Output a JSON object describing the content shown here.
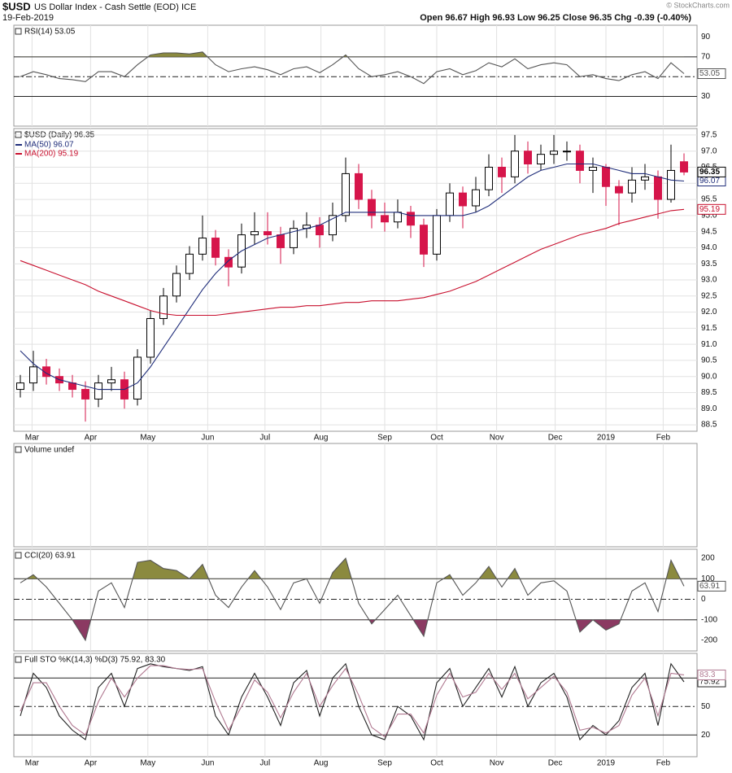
{
  "header": {
    "symbol": "$USD",
    "name": "US Dollar Index - Cash Settle (EOD) ICE",
    "date": "19-Feb-2019",
    "quote": "Open 96.67 High 96.93 Low 96.25 Close 96.35 Chg -0.39 (-0.40%)",
    "credit": "© StockCharts.com"
  },
  "chart_data": [
    {
      "type": "line",
      "title": "RSI(14) 53.05",
      "x": [
        0,
        1,
        2,
        3,
        4,
        5,
        6,
        7,
        8,
        9,
        10,
        11,
        12,
        13,
        14,
        15,
        16,
        17,
        18,
        19,
        20,
        21,
        22,
        23,
        24,
        25,
        26,
        27,
        28,
        29,
        30,
        31,
        32,
        33,
        34,
        35,
        36,
        37,
        38,
        39,
        40,
        41,
        42,
        43,
        44,
        45,
        46,
        47,
        48,
        49,
        50,
        51
      ],
      "xlim": [
        -0.5,
        52
      ],
      "ylim": [
        0,
        102
      ],
      "yticks": [
        90,
        70,
        30
      ],
      "overbought": 70,
      "oversold": 30,
      "centerline": 50,
      "fill_colors": {
        "above": "#8b8a3f",
        "below": "#8b3a62"
      },
      "series": [
        {
          "color": "#555555",
          "values": [
            50,
            55,
            52,
            48,
            47,
            45,
            55,
            55,
            50,
            62,
            72,
            74,
            74,
            73,
            75,
            62,
            55,
            58,
            60,
            57,
            52,
            58,
            60,
            54,
            62,
            72,
            58,
            50,
            52,
            55,
            50,
            43,
            55,
            58,
            52,
            56,
            64,
            60,
            68,
            58,
            62,
            64,
            62,
            50,
            52,
            48,
            46,
            52,
            55,
            48,
            64,
            53.05
          ]
        }
      ]
    },
    {
      "type": "candlestick",
      "title": "$USD (Daily) 96.35",
      "x": [
        0,
        1,
        2,
        3,
        4,
        5,
        6,
        7,
        8,
        9,
        10,
        11,
        12,
        13,
        14,
        15,
        16,
        17,
        18,
        19,
        20,
        21,
        22,
        23,
        24,
        25,
        26,
        27,
        28,
        29,
        30,
        31,
        32,
        33,
        34,
        35,
        36,
        37,
        38,
        39,
        40,
        41,
        42,
        43,
        44,
        45,
        46,
        47,
        48,
        49,
        50,
        51
      ],
      "xlim": [
        -0.5,
        52
      ],
      "xticks": [
        {
          "value": 0.9,
          "label": "Mar"
        },
        {
          "value": 5.4,
          "label": "Apr"
        },
        {
          "value": 9.8,
          "label": "May"
        },
        {
          "value": 14.4,
          "label": "Jun"
        },
        {
          "value": 18.8,
          "label": "Jul"
        },
        {
          "value": 23.1,
          "label": "Aug"
        },
        {
          "value": 28,
          "label": "Sep"
        },
        {
          "value": 32,
          "label": "Oct"
        },
        {
          "value": 36.6,
          "label": "Nov"
        },
        {
          "value": 41.1,
          "label": "Dec"
        },
        {
          "value": 45,
          "label": "2019"
        },
        {
          "value": 49.4,
          "label": "Feb"
        }
      ],
      "ylim": [
        88.3,
        97.7
      ],
      "yticks": [
        88.5,
        {
          "value": 89,
          "label": "89.0"
        },
        89.5,
        {
          "value": 90,
          "label": "90.0"
        },
        90.5,
        {
          "value": 91,
          "label": "91.0"
        },
        91.5,
        {
          "value": 92,
          "label": "92.0"
        },
        92.5,
        {
          "value": 93,
          "label": "93.0"
        },
        93.5,
        {
          "value": 94,
          "label": "94.0"
        },
        94.5,
        {
          "value": 95,
          "label": "95.0"
        },
        95.5,
        {
          "value": 96,
          "label": "96.0"
        },
        96.5,
        {
          "value": 97,
          "label": "97.0"
        },
        97.5
      ],
      "grid": true,
      "candles": {
        "up_color": "#000000",
        "down_color": "#d6154a",
        "open": [
          89.6,
          89.8,
          90.3,
          90.0,
          89.8,
          89.6,
          89.3,
          89.8,
          89.9,
          89.3,
          90.6,
          91.8,
          92.5,
          93.2,
          93.8,
          94.3,
          93.7,
          93.4,
          94.4,
          94.5,
          94.4,
          94.0,
          94.6,
          94.7,
          94.4,
          95.0,
          96.3,
          95.5,
          95.0,
          94.8,
          95.1,
          94.7,
          93.8,
          95.0,
          95.7,
          95.3,
          95.8,
          96.5,
          96.2,
          97.0,
          96.6,
          96.9,
          97.0,
          97.0,
          96.4,
          96.5,
          95.9,
          95.7,
          96.1,
          96.2,
          95.5,
          96.67
        ],
        "high": [
          90.05,
          90.8,
          90.55,
          90.25,
          90.05,
          89.85,
          90.05,
          90.3,
          90.15,
          90.85,
          92.05,
          92.75,
          93.45,
          94.05,
          95.0,
          94.55,
          93.95,
          94.75,
          95.1,
          95.1,
          94.65,
          94.85,
          95.1,
          94.95,
          95.4,
          96.8,
          96.6,
          95.8,
          95.4,
          95.5,
          95.3,
          94.9,
          95.2,
          96.0,
          95.9,
          96.2,
          96.9,
          96.8,
          97.5,
          97.3,
          97.2,
          97.5,
          97.3,
          97.2,
          96.8,
          96.6,
          96.1,
          96.5,
          96.6,
          96.4,
          97.2,
          96.93
        ],
        "low": [
          89.35,
          89.55,
          89.75,
          89.55,
          89.35,
          88.6,
          89.05,
          89.55,
          89.0,
          89.1,
          90.4,
          91.6,
          92.3,
          93.0,
          93.6,
          93.45,
          92.8,
          93.2,
          94.1,
          94.1,
          93.5,
          93.8,
          94.3,
          94.0,
          94.2,
          94.8,
          95.2,
          94.6,
          94.5,
          94.6,
          94.3,
          93.4,
          93.6,
          94.8,
          94.6,
          95.1,
          95.6,
          95.7,
          96.0,
          96.3,
          96.4,
          96.6,
          96.7,
          96.0,
          95.7,
          95.3,
          94.7,
          95.4,
          95.8,
          94.9,
          95.4,
          96.25
        ],
        "close": [
          89.8,
          90.3,
          90.0,
          89.8,
          89.6,
          89.3,
          89.8,
          89.9,
          89.3,
          90.6,
          91.8,
          92.5,
          93.2,
          93.8,
          94.3,
          93.7,
          93.4,
          94.4,
          94.5,
          94.4,
          94.0,
          94.6,
          94.7,
          94.4,
          95.0,
          96.3,
          95.5,
          95.0,
          94.8,
          95.1,
          94.7,
          93.8,
          95.0,
          95.7,
          95.3,
          95.8,
          96.5,
          96.2,
          97.0,
          96.6,
          96.9,
          97.0,
          97.0,
          96.4,
          96.5,
          95.9,
          95.7,
          96.1,
          96.2,
          95.5,
          96.4,
          96.35
        ]
      },
      "series": [
        {
          "name": "MA(50) 96.07",
          "color": "#1f2d7a",
          "values": [
            90.8,
            90.4,
            90.1,
            89.9,
            89.8,
            89.7,
            89.6,
            89.6,
            89.6,
            89.8,
            90.3,
            90.9,
            91.5,
            92.1,
            92.7,
            93.2,
            93.6,
            93.9,
            94.1,
            94.3,
            94.4,
            94.5,
            94.6,
            94.7,
            94.9,
            95.1,
            95.1,
            95.1,
            95.1,
            95.1,
            95.0,
            95.0,
            95.0,
            95.0,
            95.0,
            95.1,
            95.3,
            95.6,
            95.9,
            96.2,
            96.4,
            96.5,
            96.6,
            96.6,
            96.6,
            96.5,
            96.4,
            96.3,
            96.3,
            96.2,
            96.1,
            96.07
          ]
        },
        {
          "name": "MA(200) 95.19",
          "color": "#c8102e",
          "values": [
            93.6,
            93.45,
            93.3,
            93.15,
            93.0,
            92.85,
            92.65,
            92.5,
            92.35,
            92.2,
            92.05,
            91.95,
            91.9,
            91.9,
            91.9,
            91.9,
            91.95,
            92.0,
            92.05,
            92.1,
            92.15,
            92.15,
            92.2,
            92.2,
            92.25,
            92.3,
            92.3,
            92.35,
            92.35,
            92.35,
            92.4,
            92.45,
            92.55,
            92.65,
            92.8,
            92.95,
            93.15,
            93.35,
            93.55,
            93.75,
            93.95,
            94.1,
            94.25,
            94.4,
            94.5,
            94.6,
            94.75,
            94.85,
            94.95,
            95.05,
            95.15,
            95.19
          ]
        }
      ]
    },
    {
      "type": "bar",
      "title": "Volume undef"
    },
    {
      "type": "line",
      "title": "CCI(20) 63.91",
      "x": [
        0,
        1,
        2,
        3,
        4,
        5,
        6,
        7,
        8,
        9,
        10,
        11,
        12,
        13,
        14,
        15,
        16,
        17,
        18,
        19,
        20,
        21,
        22,
        23,
        24,
        25,
        26,
        27,
        28,
        29,
        30,
        31,
        32,
        33,
        34,
        35,
        36,
        37,
        38,
        39,
        40,
        41,
        42,
        43,
        44,
        45,
        46,
        47,
        48,
        49,
        50,
        51
      ],
      "xlim": [
        -0.5,
        52
      ],
      "ylim": [
        -252,
        244
      ],
      "yticks": [
        200,
        100,
        0,
        -100,
        -200
      ],
      "overbought": 100,
      "oversold": -100,
      "centerline": 0,
      "fill_colors": {
        "above": "#8b8a3f",
        "below": "#8b3a62"
      },
      "series": [
        {
          "color": "#555555",
          "values": [
            80,
            120,
            60,
            -20,
            -100,
            -200,
            40,
            80,
            -40,
            180,
            190,
            150,
            140,
            100,
            170,
            20,
            -40,
            60,
            140,
            60,
            -50,
            80,
            100,
            -20,
            130,
            200,
            -20,
            -120,
            -50,
            20,
            -80,
            -180,
            80,
            120,
            20,
            80,
            160,
            60,
            150,
            20,
            80,
            90,
            40,
            -160,
            -100,
            -150,
            -120,
            40,
            80,
            -60,
            190,
            63.91
          ]
        }
      ]
    },
    {
      "type": "line",
      "title": "Full STO %K(14,3) %D(3) 75.92, 83.30",
      "x": [
        0,
        1,
        2,
        3,
        4,
        5,
        6,
        7,
        8,
        9,
        10,
        11,
        12,
        13,
        14,
        15,
        16,
        17,
        18,
        19,
        20,
        21,
        22,
        23,
        24,
        25,
        26,
        27,
        28,
        29,
        30,
        31,
        32,
        33,
        34,
        35,
        36,
        37,
        38,
        39,
        40,
        41,
        42,
        43,
        44,
        45,
        46,
        47,
        48,
        49,
        50,
        51
      ],
      "xlim": [
        -0.5,
        52
      ],
      "xticks": [
        {
          "value": 0.9,
          "label": "Mar"
        },
        {
          "value": 5.4,
          "label": "Apr"
        },
        {
          "value": 9.8,
          "label": "May"
        },
        {
          "value": 14.4,
          "label": "Jun"
        },
        {
          "value": 18.8,
          "label": "Jul"
        },
        {
          "value": 23.1,
          "label": "Aug"
        },
        {
          "value": 28,
          "label": "Sep"
        },
        {
          "value": 32,
          "label": "Oct"
        },
        {
          "value": 36.6,
          "label": "Nov"
        },
        {
          "value": 41.1,
          "label": "Dec"
        },
        {
          "value": 45,
          "label": "2019"
        },
        {
          "value": 49.4,
          "label": "Feb"
        }
      ],
      "ylim": [
        -3,
        106
      ],
      "yticks": [
        50,
        20
      ],
      "overbought": 80,
      "oversold": 20,
      "centerline": 50,
      "series": [
        {
          "color": "#222222",
          "values": [
            40,
            85,
            70,
            40,
            25,
            15,
            70,
            85,
            50,
            90,
            95,
            92,
            90,
            88,
            92,
            40,
            20,
            60,
            85,
            60,
            30,
            75,
            88,
            40,
            80,
            95,
            50,
            20,
            15,
            50,
            40,
            15,
            75,
            90,
            50,
            70,
            90,
            60,
            92,
            50,
            75,
            85,
            60,
            15,
            30,
            20,
            35,
            70,
            85,
            30,
            95,
            75.92
          ]
        },
        {
          "color": "#b07890",
          "values": [
            45,
            75,
            75,
            50,
            30,
            20,
            55,
            80,
            60,
            80,
            93,
            93,
            90,
            89,
            90,
            55,
            25,
            50,
            78,
            65,
            38,
            65,
            85,
            50,
            72,
            90,
            62,
            28,
            18,
            42,
            42,
            22,
            62,
            85,
            60,
            65,
            85,
            68,
            85,
            58,
            70,
            82,
            65,
            25,
            28,
            22,
            30,
            62,
            80,
            40,
            85,
            83.3
          ]
        }
      ]
    }
  ]
}
